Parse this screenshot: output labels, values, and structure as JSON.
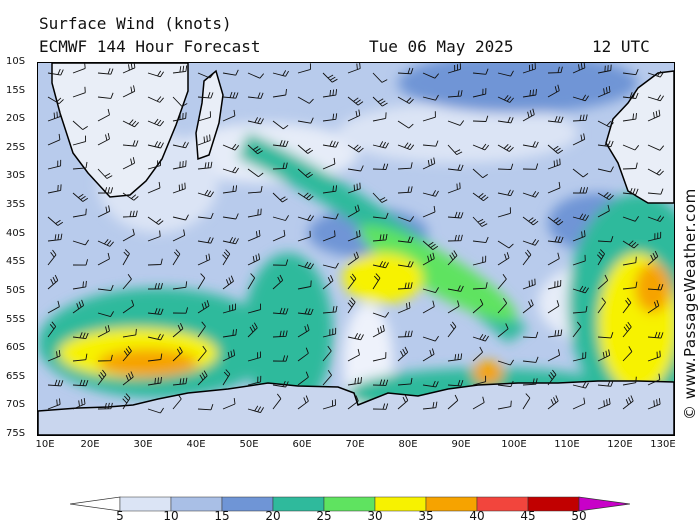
{
  "header": {
    "title_line1": "Surface Wind (knots)",
    "title_line2": "ECMWF 144 Hour Forecast",
    "date": "Tue 06 May 2025",
    "time": "12 UTC"
  },
  "map": {
    "latitude_labels": [
      "10S",
      "15S",
      "20S",
      "25S",
      "30S",
      "35S",
      "40S",
      "45S",
      "50S",
      "55S",
      "60S",
      "65S",
      "70S",
      "75S"
    ],
    "longitude_labels": [
      "10E",
      "20E",
      "30E",
      "40E",
      "50E",
      "60E",
      "70E",
      "80E",
      "90E",
      "100E",
      "110E",
      "120E",
      "130E"
    ],
    "lat_range": [
      -10,
      -75
    ],
    "lon_range": [
      10,
      130
    ]
  },
  "colorbar": {
    "labels": [
      "5",
      "10",
      "15",
      "20",
      "25",
      "30",
      "35",
      "40",
      "45",
      "50"
    ],
    "colors": [
      "#ffffff",
      "#dbe4f5",
      "#a9bfe6",
      "#6f95d6",
      "#2fba9c",
      "#5fe360",
      "#f7f200",
      "#f6a300",
      "#f2453d",
      "#c10000",
      "#c800c8"
    ]
  },
  "copyright": "© www.PassageWeather.com"
}
